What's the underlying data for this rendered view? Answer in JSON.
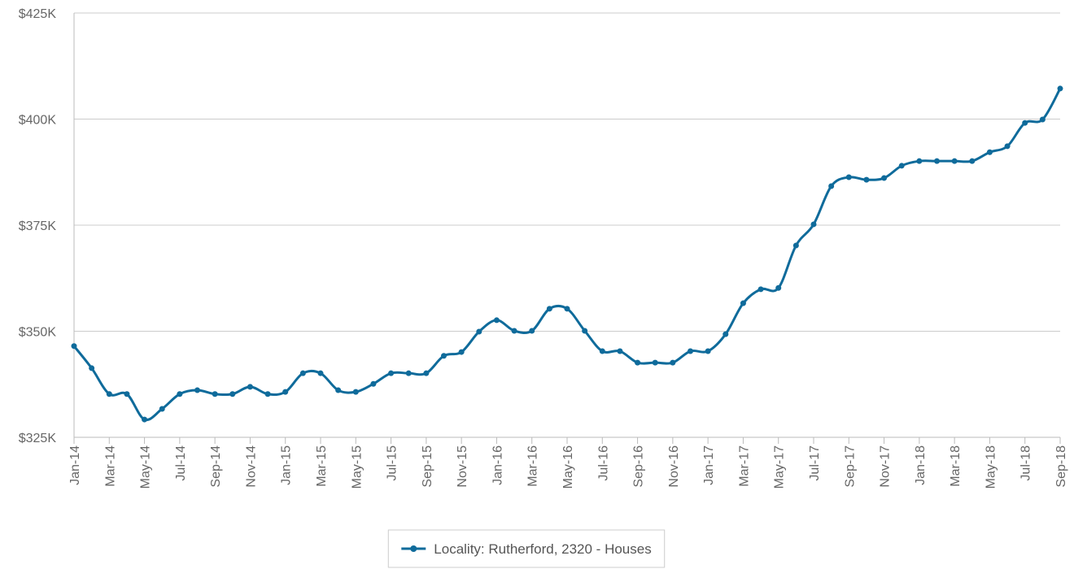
{
  "chart_data": {
    "type": "line",
    "categories": [
      "Jan-14",
      null,
      "Mar-14",
      null,
      "May-14",
      null,
      "Jul-14",
      null,
      "Sep-14",
      null,
      "Nov-14",
      null,
      "Jan-15",
      null,
      "Mar-15",
      null,
      "May-15",
      null,
      "Jul-15",
      null,
      "Sep-15",
      null,
      "Nov-15",
      null,
      "Jan-16",
      null,
      "Mar-16",
      null,
      "May-16",
      null,
      "Jul-16",
      null,
      "Sep-16",
      null,
      "Nov-16",
      null,
      "Jan-17",
      null,
      "Mar-17",
      null,
      "May-17",
      null,
      "Jul-17",
      null,
      "Sep-17",
      null,
      "Nov-17",
      null,
      "Jan-18",
      null,
      "Mar-18",
      null,
      "May-18",
      null,
      "Jul-18",
      null,
      "Sep-18"
    ],
    "series": [
      {
        "name": "Locality: Rutherford, 2320 - Houses",
        "color": "#0f6b9b",
        "values": [
          346500,
          341300,
          335200,
          335200,
          329200,
          331700,
          335200,
          336100,
          335200,
          335200,
          336900,
          335200,
          335700,
          340100,
          340100,
          336100,
          335700,
          337600,
          340100,
          340100,
          340100,
          344200,
          345100,
          349900,
          352600,
          350100,
          350100,
          355300,
          355300,
          350100,
          345300,
          345300,
          342600,
          342600,
          342600,
          345300,
          345300,
          349300,
          356600,
          359900,
          360200,
          370200,
          375200,
          384200,
          386300,
          385700,
          386100,
          389000,
          390100,
          390100,
          390100,
          390100,
          392200,
          393600,
          399100,
          399900,
          407200
        ]
      }
    ],
    "ylim": [
      325000,
      425000
    ],
    "yticks": [
      {
        "value": 325000,
        "label": "$325K"
      },
      {
        "value": 350000,
        "label": "$350K"
      },
      {
        "value": 375000,
        "label": "$375K"
      },
      {
        "value": 400000,
        "label": "$400K"
      },
      {
        "value": 425000,
        "label": "$425K"
      }
    ],
    "grid": true,
    "legend": "bottom"
  }
}
